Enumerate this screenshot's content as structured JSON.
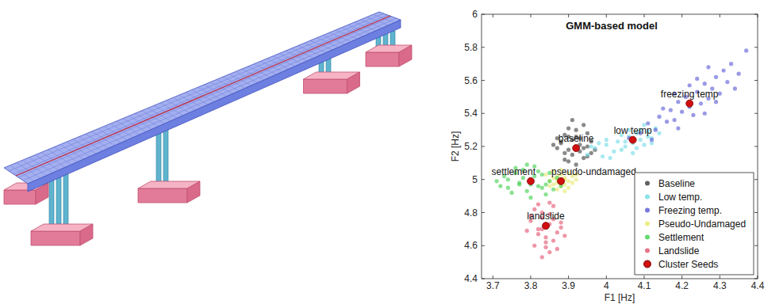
{
  "chart_data": {
    "type": "scatter",
    "title": "GMM-based model",
    "x_label": "F1 [Hz]",
    "y_label": "F2 [Hz]",
    "xlim": [
      3.67,
      4.4
    ],
    "ylim": [
      4.4,
      6
    ],
    "xticks": [
      3.7,
      3.8,
      3.9,
      4,
      4.1,
      4.2,
      4.3,
      4.4
    ],
    "yticks": [
      4.4,
      4.6,
      4.8,
      5,
      5.2,
      5.4,
      5.6,
      5.8,
      6
    ],
    "grid": false,
    "legend": "lower right",
    "series": [
      {
        "name": "Baseline",
        "color": "#3a3a3a",
        "marker": "circle",
        "x": [
          3.88,
          3.9,
          3.93,
          3.95,
          3.91,
          3.89,
          3.94,
          3.96,
          3.92,
          3.87,
          3.9,
          3.93,
          3.95,
          3.91,
          3.86,
          3.89,
          3.92,
          3.94,
          3.97,
          3.9,
          3.88,
          3.93,
          3.91,
          3.95,
          3.89,
          3.92,
          3.94,
          3.9,
          3.87,
          3.96
        ],
        "values": [
          5.22,
          5.18,
          5.25,
          5.2,
          5.15,
          5.27,
          5.13,
          5.23,
          5.3,
          5.19,
          5.11,
          5.17,
          5.28,
          5.24,
          5.21,
          5.16,
          5.09,
          5.33,
          5.18,
          5.26,
          5.23,
          5.21,
          5.36,
          5.14,
          5.12,
          5.26,
          5.19,
          5.31,
          5.25,
          5.16
        ]
      },
      {
        "name": "Low temp.",
        "color": "#6fdbe6",
        "marker": "circle",
        "x": [
          3.95,
          3.97,
          3.99,
          4.0,
          4.02,
          4.03,
          4.05,
          4.06,
          4.07,
          4.08,
          4.09,
          4.1,
          4.11,
          4.12,
          4.13,
          3.98,
          4.01,
          4.04,
          4.06,
          4.08,
          4.1,
          4.12,
          3.96,
          4.0,
          4.04,
          4.07,
          4.09,
          4.11,
          4.14,
          4.05
        ],
        "values": [
          5.15,
          5.19,
          5.14,
          5.21,
          5.17,
          5.23,
          5.2,
          5.26,
          5.22,
          5.28,
          5.24,
          5.21,
          5.29,
          5.25,
          5.31,
          5.22,
          5.13,
          5.18,
          5.3,
          5.19,
          5.33,
          5.22,
          5.2,
          5.24,
          5.27,
          5.16,
          5.3,
          5.26,
          5.28,
          5.23
        ]
      },
      {
        "name": "Freezing temp.",
        "color": "#5656d4",
        "marker": "circle",
        "x": [
          4.06,
          4.09,
          4.11,
          4.13,
          4.14,
          4.16,
          4.17,
          4.18,
          4.19,
          4.2,
          4.21,
          4.22,
          4.23,
          4.24,
          4.25,
          4.26,
          4.27,
          4.28,
          4.29,
          4.3,
          4.31,
          4.32,
          4.33,
          4.35,
          4.37,
          4.15,
          4.19,
          4.22,
          4.26,
          4.29,
          4.12,
          4.24,
          4.34,
          4.18,
          4.27
        ],
        "values": [
          5.25,
          5.28,
          5.34,
          5.3,
          5.38,
          5.35,
          5.42,
          5.36,
          5.47,
          5.41,
          5.5,
          5.44,
          5.39,
          5.53,
          5.46,
          5.58,
          5.49,
          5.55,
          5.62,
          5.52,
          5.66,
          5.59,
          5.7,
          5.64,
          5.78,
          5.43,
          5.31,
          5.57,
          5.4,
          5.47,
          5.24,
          5.61,
          5.55,
          5.52,
          5.68
        ]
      },
      {
        "name": "Pseudo-Undamaged",
        "color": "#e8e86a",
        "marker": "circle",
        "x": [
          3.85,
          3.87,
          3.88,
          3.89,
          3.9,
          3.86,
          3.88,
          3.91,
          3.87,
          3.89,
          3.92,
          3.84,
          3.86,
          3.9,
          3.88,
          3.87,
          3.89,
          3.91,
          3.85,
          3.88,
          3.9,
          3.86,
          3.89,
          3.87,
          3.92
        ],
        "values": [
          4.99,
          5.02,
          4.96,
          5.0,
          5.04,
          4.97,
          5.03,
          4.98,
          4.94,
          5.01,
          5.0,
          5.03,
          5.05,
          4.95,
          4.99,
          5.0,
          4.97,
          5.02,
          4.96,
          5.06,
          4.99,
          5.01,
          4.93,
          4.98,
          5.03
        ]
      },
      {
        "name": "Settlement",
        "color": "#3ecf4a",
        "marker": "circle",
        "x": [
          3.71,
          3.73,
          3.74,
          3.76,
          3.77,
          3.78,
          3.79,
          3.8,
          3.81,
          3.82,
          3.83,
          3.84,
          3.85,
          3.86,
          3.87,
          3.75,
          3.78,
          3.8,
          3.82,
          3.84,
          3.72,
          3.77,
          3.79,
          3.81,
          3.83,
          3.76,
          3.8,
          3.85,
          3.88,
          3.74
        ],
        "values": [
          4.99,
          5.02,
          4.95,
          5.04,
          4.97,
          5.06,
          4.93,
          5.0,
          5.08,
          4.96,
          5.03,
          4.91,
          4.99,
          4.94,
          5.01,
          4.92,
          5.01,
          4.89,
          5.05,
          4.97,
          4.96,
          4.98,
          5.09,
          5.02,
          4.95,
          5.07,
          4.97,
          5.04,
          4.96,
          5.0
        ]
      },
      {
        "name": "Landslide",
        "color": "#e3506a",
        "marker": "circle",
        "x": [
          3.8,
          3.82,
          3.83,
          3.84,
          3.85,
          3.86,
          3.87,
          3.81,
          3.83,
          3.85,
          3.88,
          3.79,
          3.82,
          3.84,
          3.86,
          3.89,
          3.83,
          3.85,
          3.87,
          3.81,
          3.84,
          3.86,
          3.8,
          3.82,
          3.85,
          3.88,
          3.83,
          3.84
        ],
        "values": [
          4.75,
          4.7,
          4.8,
          4.65,
          4.73,
          4.84,
          4.68,
          4.6,
          4.77,
          4.56,
          4.71,
          4.69,
          4.85,
          4.62,
          4.76,
          4.66,
          4.53,
          4.79,
          4.58,
          4.82,
          4.72,
          4.63,
          4.78,
          4.67,
          4.86,
          4.74,
          4.7,
          4.59
        ]
      },
      {
        "name": "Cluster Seeds",
        "color": "#d10f0f",
        "marker": "circle",
        "x": [
          3.92,
          4.07,
          4.22,
          3.88,
          3.8,
          3.84
        ],
        "values": [
          5.19,
          5.24,
          5.46,
          4.99,
          4.99,
          4.72
        ],
        "labels": [
          "baseline",
          "low temp",
          "freezing temp",
          "pseudo-undamaged",
          "settlement",
          "landslide"
        ]
      }
    ]
  }
}
